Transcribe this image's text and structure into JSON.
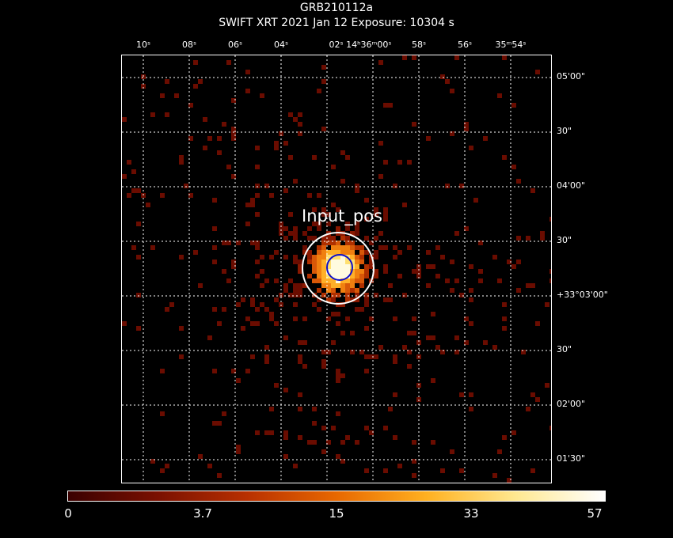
{
  "header": {
    "title": "GRB210112a",
    "subtitle": "SWIFT XRT    2021 Jan 12    Exposure: 10304 s"
  },
  "ra_ticks": [
    {
      "label": "10ˢ"
    },
    {
      "label": "08ˢ"
    },
    {
      "label": "06ˢ"
    },
    {
      "label": "04ˢ"
    },
    {
      "label": "02ˢ 14ʰ36ᵐ00ˢ"
    },
    {
      "label": "58ˢ"
    },
    {
      "label": "56ˢ"
    },
    {
      "label": "35ᵐ54ˢ"
    }
  ],
  "dec_ticks": [
    {
      "label": "05'00\""
    },
    {
      "label": "30\""
    },
    {
      "label": "04'00\""
    },
    {
      "label": "30\""
    },
    {
      "label": "+33°03'00\""
    },
    {
      "label": "30\""
    },
    {
      "label": "02'00\""
    },
    {
      "label": "01'30\""
    }
  ],
  "region": {
    "label": "Input_pos",
    "outer_color": "#ffffff",
    "inner_color": "#1010c8"
  },
  "colorbar": {
    "ticks": [
      "0",
      "3.7",
      "15",
      "33",
      "57"
    ],
    "colors": [
      "#3a0000",
      "#7a1000",
      "#b83000",
      "#e86800",
      "#ffb020",
      "#ffe890",
      "#ffffff"
    ]
  }
}
